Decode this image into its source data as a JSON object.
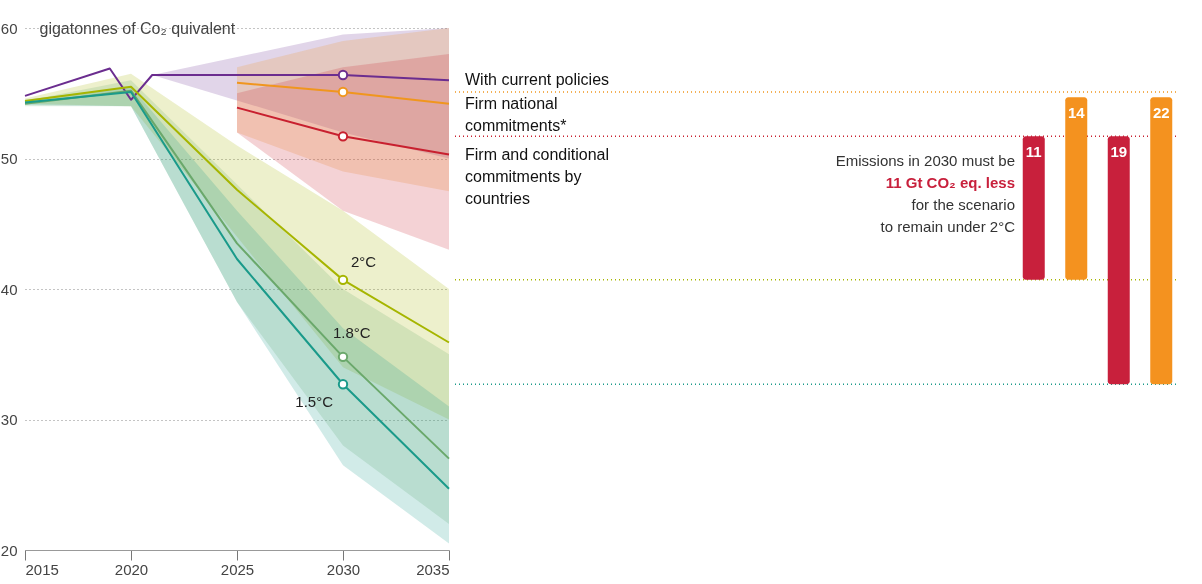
{
  "chart_data": [
    {
      "type": "line",
      "xlim": [
        2015,
        2035
      ],
      "xticks": [
        2015,
        2020,
        2025,
        2030,
        2035
      ],
      "ylim": [
        20,
        60
      ],
      "yticks": [
        20,
        30,
        40,
        50,
        60
      ],
      "ylabel": "gigatonnes of Co₂ quivalent",
      "grid": "y",
      "line_style": "solid",
      "series": [
        {
          "name": "With current policies",
          "color": "#6b2d8f",
          "x": [
            2015,
            2019,
            2020,
            2021,
            2030,
            2035
          ],
          "values": [
            54.8,
            56.9,
            54.5,
            56.4,
            56.4,
            56.0
          ],
          "lower": [
            null,
            null,
            null,
            56.4,
            52,
            50
          ],
          "upper": [
            null,
            null,
            null,
            56.4,
            59.5,
            60
          ]
        },
        {
          "name": "Firm national commitments*",
          "color": "#f0961e",
          "x": [
            2025,
            2030,
            2035
          ],
          "values": [
            55.8,
            55.1,
            54.2
          ],
          "lower": [
            52,
            49,
            47.5
          ],
          "upper": [
            57,
            59,
            60
          ]
        },
        {
          "name": "Firm and conditional commitments by countries",
          "color": "#c8202f",
          "x": [
            2025,
            2030,
            2035
          ],
          "values": [
            53.9,
            51.7,
            50.3
          ],
          "lower": [
            52,
            46,
            43
          ],
          "upper": [
            55,
            57,
            58
          ]
        },
        {
          "name": "2°C",
          "color": "#a6b500",
          "x": [
            2015,
            2020,
            2025,
            2030,
            2035
          ],
          "values": [
            54.4,
            55.5,
            47.6,
            40.7,
            35.9
          ],
          "lower": [
            54.2,
            54,
            44,
            34,
            30
          ],
          "upper": [
            54.6,
            56.5,
            51,
            46,
            40
          ]
        },
        {
          "name": "1.8°C",
          "color": "#6aa86b",
          "x": [
            2015,
            2020,
            2025,
            2030,
            2035
          ],
          "values": [
            54.2,
            55.2,
            43.5,
            34.8,
            27.0
          ],
          "lower": [
            54.0,
            54,
            39,
            28,
            22
          ],
          "upper": [
            54.4,
            56,
            48,
            40,
            35
          ]
        },
        {
          "name": "1.5°C",
          "color": "#1a9a8a",
          "x": [
            2015,
            2020,
            2025,
            2030,
            2035
          ],
          "values": [
            54.3,
            55.1,
            42.3,
            32.7,
            24.7
          ],
          "lower": [
            54.1,
            54,
            39,
            26.5,
            20.5
          ],
          "upper": [
            54.5,
            55.5,
            46,
            37,
            31
          ]
        },
        {
          "type": "scatter",
          "marker": "circle",
          "x": [
            2030,
            2030,
            2030,
            2030,
            2030,
            2030
          ],
          "values": [
            56.4,
            55.1,
            51.7,
            40.7,
            34.8,
            32.7
          ],
          "colors": [
            "#6b2d8f",
            "#f0961e",
            "#c8202f",
            "#a6b500",
            "#6aa86b",
            "#1a9a8a"
          ]
        }
      ]
    },
    {
      "type": "bar",
      "categories": [
        null,
        null,
        null,
        null
      ],
      "values": [
        11,
        14,
        19,
        22
      ],
      "base": [
        40.7,
        40.7,
        32.7,
        32.7
      ],
      "colors": [
        "#c8203c",
        "#f4921f",
        "#c8203c",
        "#f4921f"
      ],
      "data_labels": true,
      "ylim": [
        20,
        60
      ],
      "yticks": [
        20,
        30,
        40,
        50,
        60
      ],
      "tick_labels": false,
      "ref_lines": [
        {
          "axis": "y",
          "value": 55.1,
          "color": "#f0961e",
          "line_style": "dotted"
        },
        {
          "axis": "y",
          "value": 51.7,
          "color": "#c8202f",
          "line_style": "dotted"
        },
        {
          "axis": "y",
          "value": 40.7,
          "color": "#a6b500",
          "line_style": "dotted"
        },
        {
          "axis": "y",
          "value": 32.7,
          "color": "#1a9a8a",
          "line_style": "dotted"
        }
      ],
      "annotations": [
        "Emissions in 2030 must be",
        "11 Gt CO₂ eq. less",
        "for the scenario",
        "to remain under 2°C"
      ]
    }
  ]
}
